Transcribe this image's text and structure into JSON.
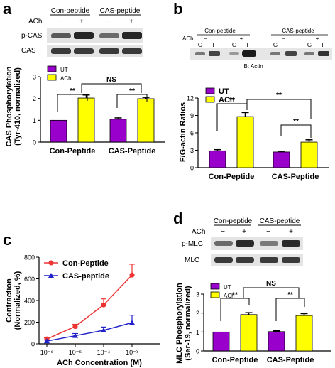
{
  "panels": {
    "a": {
      "label": "a",
      "blot": {
        "groups": [
          "Con-peptide",
          "CAS-peptide"
        ],
        "ach_label": "ACh",
        "ach_signs": [
          "−",
          "+",
          "−",
          "+"
        ],
        "rows": [
          "p-CAS",
          "CAS"
        ]
      }
    },
    "b": {
      "label": "b",
      "blot": {
        "groups": [
          "Con-peptide",
          "CAS-peptide"
        ],
        "ach_label": "ACh",
        "ach_signs": [
          "−",
          "+",
          "−",
          "+"
        ],
        "fractions": [
          "G",
          "F",
          "G",
          "F",
          "G",
          "F",
          "G",
          "F"
        ],
        "caption": "IB: Actin"
      }
    },
    "c": {
      "label": "c"
    },
    "d": {
      "label": "d",
      "blot": {
        "groups": [
          "Con-peptide",
          "CAS-peptide"
        ],
        "ach_label": "ACh",
        "ach_signs": [
          "−",
          "+",
          "−",
          "+"
        ],
        "rows": [
          "p-MLC",
          "MLC"
        ]
      }
    }
  },
  "chart_data": [
    {
      "id": "a",
      "type": "bar",
      "categories": [
        "Con-Peptide",
        "CAS-Peptide"
      ],
      "series": [
        {
          "name": "UT",
          "values": [
            1.0,
            1.05
          ],
          "errors": [
            0,
            0.06
          ],
          "color": "#9900cc"
        },
        {
          "name": "ACh",
          "values": [
            2.02,
            1.99
          ],
          "errors": [
            0.14,
            0.06
          ],
          "color": "#ffff00"
        }
      ],
      "ylabel": "CAS Phosphorylation (Tyr-410, normalized)",
      "ylim": [
        0,
        3
      ],
      "yticks": [
        0,
        1,
        2,
        3
      ],
      "legend": "top-left",
      "annotations": [
        "**",
        "**",
        "NS"
      ]
    },
    {
      "id": "b",
      "type": "bar",
      "categories": [
        "Con-Peptide",
        "CAS-Peptide"
      ],
      "series": [
        {
          "name": "UT",
          "values": [
            2.9,
            2.7
          ],
          "errors": [
            0.2,
            0.15
          ],
          "color": "#9900cc"
        },
        {
          "name": "ACh",
          "values": [
            8.8,
            4.4
          ],
          "errors": [
            0.7,
            0.4
          ],
          "color": "#ffff00"
        }
      ],
      "ylabel": "F/G-actin Ratios",
      "ylim": [
        0,
        12
      ],
      "yticks": [
        0,
        3,
        6,
        9,
        12
      ],
      "legend": "top-left",
      "annotations": [
        "**",
        "**",
        "**"
      ]
    },
    {
      "id": "c",
      "type": "line",
      "x": [
        "10⁻⁶",
        "10⁻⁵",
        "10⁻⁴",
        "10⁻³"
      ],
      "series": [
        {
          "name": "Con-Peptide",
          "values": [
            45,
            160,
            360,
            635
          ],
          "errors": [
            10,
            20,
            55,
            100
          ],
          "color": "#ee3333"
        },
        {
          "name": "CAS-peptide",
          "values": [
            25,
            75,
            125,
            195
          ],
          "errors": [
            10,
            20,
            30,
            70
          ],
          "color": "#2222cc"
        }
      ],
      "xlabel": "ACh Concentration (M)",
      "ylabel": "Contraction (Normalized, %)",
      "ylim": [
        0,
        800
      ],
      "yticks": [
        0,
        200,
        400,
        600,
        800
      ],
      "legend": "top-left"
    },
    {
      "id": "d",
      "type": "bar",
      "categories": [
        "Con-Peptide",
        "CAS-Peptide"
      ],
      "series": [
        {
          "name": "UT",
          "values": [
            1.0,
            1.02
          ],
          "errors": [
            0,
            0.04
          ],
          "color": "#9900cc"
        },
        {
          "name": "ACh",
          "values": [
            1.92,
            1.87
          ],
          "errors": [
            0.1,
            0.1
          ],
          "color": "#ffff00"
        }
      ],
      "ylabel": "MLC Phosphorylation (Ser-19, normalized)",
      "ylim": [
        0,
        3
      ],
      "yticks": [
        0,
        1,
        2,
        3
      ],
      "legend": "top-left",
      "annotations": [
        "**",
        "**",
        "NS"
      ]
    }
  ]
}
